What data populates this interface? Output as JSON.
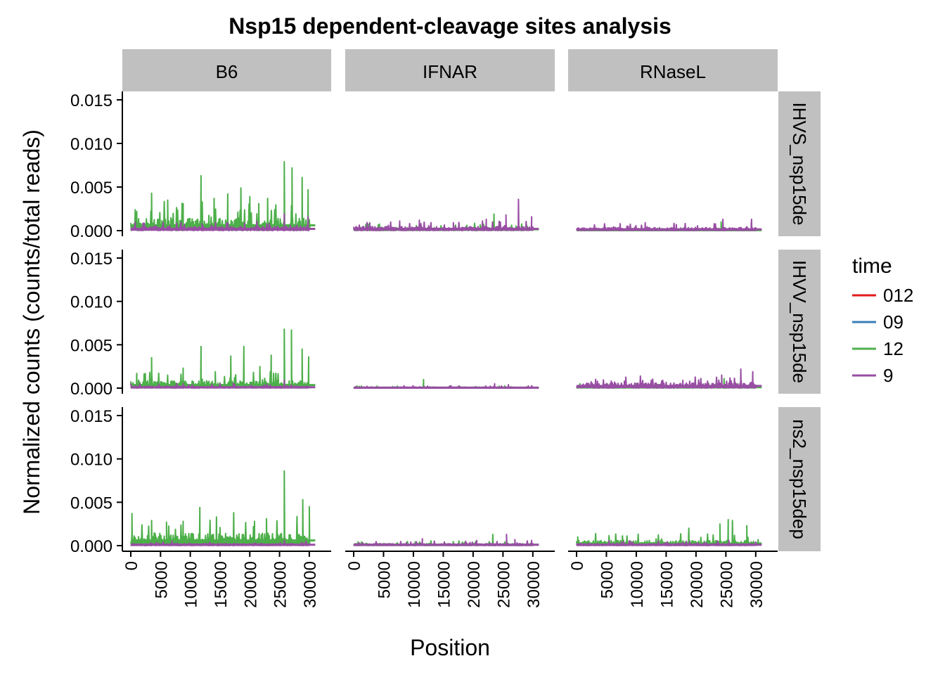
{
  "chart_data": {
    "type": "line",
    "title": "Nsp15 dependent-cleavage sites analysis",
    "xlabel": "Position",
    "ylabel": "Normalized counts (counts/total reads)",
    "xlim": [
      0,
      30000
    ],
    "ylim": [
      0,
      0.015
    ],
    "x_ticks": [
      "0",
      "5000",
      "10000",
      "15000",
      "20000",
      "25000",
      "30000"
    ],
    "x_tick_values": [
      0,
      5000,
      10000,
      15000,
      20000,
      25000,
      30000
    ],
    "y_ticks": [
      "0.000",
      "0.005",
      "0.010",
      "0.015"
    ],
    "y_tick_values": [
      0,
      0.005,
      0.01,
      0.015
    ],
    "facet_columns": [
      "B6",
      "IFNAR",
      "RNaseL"
    ],
    "facet_rows": [
      "IHVS_nsp15de",
      "IHVV_nsp15de",
      "ns2_nsp15dep"
    ],
    "legend": {
      "title": "time",
      "placement": "right",
      "entries": [
        {
          "label": "012",
          "color": "#e41a1c"
        },
        {
          "label": "09",
          "color": "#377eb8"
        },
        {
          "label": "12",
          "color": "#4daf4a"
        },
        {
          "label": "9",
          "color": "#984ea3"
        }
      ]
    },
    "grid": false,
    "panels": [
      {
        "row": 0,
        "col": 0,
        "series": [
          {
            "name": "12",
            "peaks": [
              [
                1000,
                0.0022
              ],
              [
                3500,
                0.0043
              ],
              [
                6200,
                0.0035
              ],
              [
                8800,
                0.0031
              ],
              [
                11800,
                0.0063
              ],
              [
                14000,
                0.0037
              ],
              [
                16300,
                0.0042
              ],
              [
                18500,
                0.0049
              ],
              [
                20000,
                0.0039
              ],
              [
                21500,
                0.0031
              ],
              [
                23000,
                0.0037
              ],
              [
                25800,
                0.0079
              ],
              [
                27100,
                0.0072
              ],
              [
                28800,
                0.0061
              ],
              [
                29800,
                0.0047
              ]
            ],
            "base": 0.0012
          },
          {
            "name": "9",
            "peaks": [
              [
                25800,
                0.0019
              ],
              [
                29800,
                0.0016
              ]
            ],
            "base": 0.0004
          }
        ]
      },
      {
        "row": 0,
        "col": 1,
        "series": [
          {
            "name": "12",
            "peaks": [
              [
                23500,
                0.0019
              ]
            ],
            "base": 0.0003
          },
          {
            "name": "9",
            "peaks": [
              [
                2700,
                0.0009
              ],
              [
                7700,
                0.0011
              ],
              [
                11000,
                0.0012
              ],
              [
                16700,
                0.0009
              ],
              [
                22200,
                0.0013
              ],
              [
                25500,
                0.0018
              ],
              [
                27600,
                0.0036
              ],
              [
                29800,
                0.0016
              ]
            ],
            "base": 0.0004
          }
        ]
      },
      {
        "row": 0,
        "col": 2,
        "series": [
          {
            "name": "12",
            "peaks": [
              [
                24200,
                0.001
              ]
            ],
            "base": 0.0001
          },
          {
            "name": "9",
            "peaks": [
              [
                7300,
                0.0008
              ],
              [
                11500,
                0.0009
              ],
              [
                16700,
                0.0007
              ],
              [
                24500,
                0.0013
              ],
              [
                29300,
                0.0013
              ]
            ],
            "base": 0.0003
          }
        ]
      },
      {
        "row": 1,
        "col": 0,
        "series": [
          {
            "name": "12",
            "peaks": [
              [
                1000,
                0.0017
              ],
              [
                3500,
                0.0035
              ],
              [
                8800,
                0.0023
              ],
              [
                11800,
                0.0048
              ],
              [
                14200,
                0.0019
              ],
              [
                16800,
                0.0037
              ],
              [
                19000,
                0.0048
              ],
              [
                21700,
                0.0025
              ],
              [
                23600,
                0.0038
              ],
              [
                25800,
                0.0068
              ],
              [
                27000,
                0.0067
              ],
              [
                28800,
                0.0045
              ],
              [
                29900,
                0.0036
              ]
            ],
            "base": 0.0007
          },
          {
            "name": "9",
            "peaks": [
              [
                25800,
                0.0009
              ]
            ],
            "base": 0.0002
          }
        ]
      },
      {
        "row": 1,
        "col": 1,
        "series": [
          {
            "name": "12",
            "peaks": [
              [
                11700,
                0.001
              ]
            ],
            "base": 0.0001
          },
          {
            "name": "9",
            "peaks": [
              [
                23600,
                0.0005
              ],
              [
                25900,
                0.0004
              ]
            ],
            "base": 0.0001
          }
        ]
      },
      {
        "row": 1,
        "col": 2,
        "series": [
          {
            "name": "12",
            "peaks": [
              [
                24700,
                0.0011
              ]
            ],
            "base": 0.0002
          },
          {
            "name": "9",
            "peaks": [
              [
                3500,
                0.0008
              ],
              [
                8000,
                0.0008
              ],
              [
                12500,
                0.0009
              ],
              [
                17800,
                0.0009
              ],
              [
                24300,
                0.0015
              ],
              [
                27500,
                0.0022
              ],
              [
                29500,
                0.0019
              ]
            ],
            "base": 0.0005
          }
        ]
      },
      {
        "row": 2,
        "col": 0,
        "series": [
          {
            "name": "12",
            "peaks": [
              [
                200,
                0.0037
              ],
              [
                3500,
                0.0029
              ],
              [
                6000,
                0.0027
              ],
              [
                8800,
                0.0028
              ],
              [
                11600,
                0.0044
              ],
              [
                14400,
                0.0033
              ],
              [
                17300,
                0.0038
              ],
              [
                20800,
                0.0028
              ],
              [
                22800,
                0.0031
              ],
              [
                25800,
                0.0086
              ],
              [
                28900,
                0.0053
              ],
              [
                30000,
                0.0045
              ]
            ],
            "base": 0.0012
          },
          {
            "name": "9",
            "peaks": [
              [
                25800,
                0.0006
              ]
            ],
            "base": 0.0002
          }
        ]
      },
      {
        "row": 2,
        "col": 1,
        "series": [
          {
            "name": "12",
            "peaks": [
              [
                23300,
                0.0013
              ]
            ],
            "base": 0.0002
          },
          {
            "name": "9",
            "peaks": [
              [
                11500,
                0.0008
              ],
              [
                20600,
                0.0006
              ],
              [
                25600,
                0.0013
              ],
              [
                27000,
                0.0007
              ],
              [
                29800,
                0.0006
              ]
            ],
            "base": 0.0002
          }
        ]
      },
      {
        "row": 2,
        "col": 2,
        "series": [
          {
            "name": "12",
            "peaks": [
              [
                200,
                0.001
              ],
              [
                18800,
                0.002
              ],
              [
                24000,
                0.0025
              ],
              [
                25400,
                0.003
              ],
              [
                26100,
                0.0029
              ],
              [
                28500,
                0.0023
              ],
              [
                30400,
                0.0007
              ]
            ],
            "base": 0.0005
          },
          {
            "name": "9",
            "peaks": [
              [
                7500,
                0.0004
              ],
              [
                25500,
                0.0006
              ]
            ],
            "base": 0.0002
          }
        ]
      }
    ]
  }
}
